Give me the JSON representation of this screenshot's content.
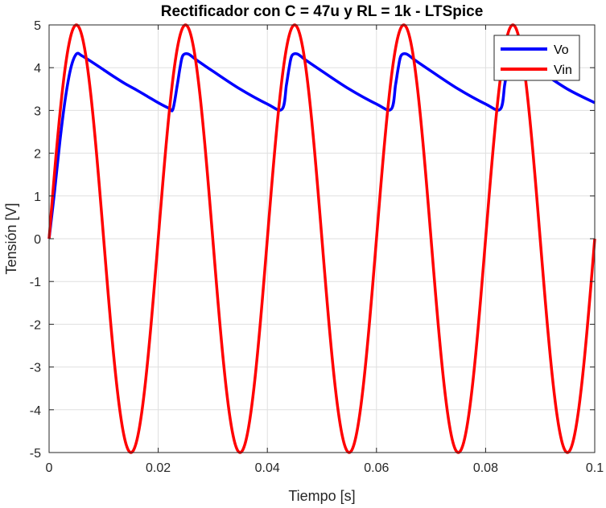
{
  "chart_data": {
    "type": "line",
    "title": "Rectificador con C = 47u y RL = 1k - LTSpice",
    "xlabel": "Tiempo [s]",
    "ylabel": "Tensión [V]",
    "xlim": [
      0,
      0.1
    ],
    "ylim": [
      -5,
      5
    ],
    "xticks": [
      0,
      0.02,
      0.04,
      0.06,
      0.08,
      0.1
    ],
    "xtick_labels": [
      "0",
      "0.02",
      "0.04",
      "0.06",
      "0.08",
      "0.1"
    ],
    "yticks": [
      -5,
      -4,
      -3,
      -2,
      -1,
      0,
      1,
      2,
      3,
      4,
      5
    ],
    "ytick_labels": [
      "-5",
      "-4",
      "-3",
      "-2",
      "-1",
      "0",
      "1",
      "2",
      "3",
      "4",
      "5"
    ],
    "grid": true,
    "legend_position": "top-right",
    "series": [
      {
        "name": "Vo",
        "color": "#0000ff",
        "x": [
          0,
          0.001,
          0.002,
          0.003,
          0.004,
          0.005,
          0.006,
          0.008,
          0.01,
          0.012,
          0.014,
          0.016,
          0.018,
          0.02,
          0.022,
          0.0227,
          0.0235,
          0.024,
          0.0245,
          0.0255,
          0.027,
          0.03,
          0.035,
          0.04,
          0.0427,
          0.0435,
          0.044,
          0.0445,
          0.0455,
          0.047,
          0.05,
          0.055,
          0.06,
          0.0627,
          0.0635,
          0.064,
          0.0645,
          0.0655,
          0.067,
          0.07,
          0.075,
          0.08,
          0.0827,
          0.0835,
          0.084,
          0.0845,
          0.0855,
          0.087,
          0.09,
          0.095,
          0.1
        ],
        "values": [
          0,
          1.1,
          2.3,
          3.3,
          4.0,
          4.32,
          4.28,
          4.12,
          3.95,
          3.78,
          3.62,
          3.48,
          3.33,
          3.18,
          3.05,
          3.03,
          3.6,
          4.0,
          4.28,
          4.32,
          4.18,
          3.92,
          3.5,
          3.15,
          3.03,
          3.6,
          4.0,
          4.28,
          4.32,
          4.18,
          3.92,
          3.5,
          3.15,
          3.03,
          3.6,
          4.0,
          4.28,
          4.32,
          4.18,
          3.92,
          3.5,
          3.15,
          3.03,
          3.6,
          4.0,
          4.28,
          4.32,
          4.18,
          3.92,
          3.5,
          3.18
        ]
      },
      {
        "name": "Vin",
        "color": "#ff0000",
        "amplitude": 5,
        "frequency_hz": 50,
        "x": [
          0,
          0.0025,
          0.005,
          0.0075,
          0.01,
          0.0125,
          0.015,
          0.0175,
          0.02,
          0.0225,
          0.025,
          0.0275,
          0.03,
          0.0325,
          0.035,
          0.0375,
          0.04,
          0.0425,
          0.045,
          0.0475,
          0.05,
          0.0525,
          0.055,
          0.0575,
          0.06,
          0.0625,
          0.065,
          0.0675,
          0.07,
          0.0725,
          0.075,
          0.0775,
          0.08,
          0.0825,
          0.085,
          0.0875,
          0.09,
          0.0925,
          0.095,
          0.0975,
          0.1
        ],
        "values": [
          0,
          3.54,
          5,
          3.54,
          0,
          -3.54,
          -5,
          -3.54,
          0,
          3.54,
          5,
          3.54,
          0,
          -3.54,
          -5,
          -3.54,
          0,
          3.54,
          5,
          3.54,
          0,
          -3.54,
          -5,
          -3.54,
          0,
          3.54,
          5,
          3.54,
          0,
          -3.54,
          -5,
          -3.54,
          0,
          3.54,
          5,
          3.54,
          0,
          -3.54,
          -5,
          -3.54,
          0
        ]
      }
    ]
  }
}
